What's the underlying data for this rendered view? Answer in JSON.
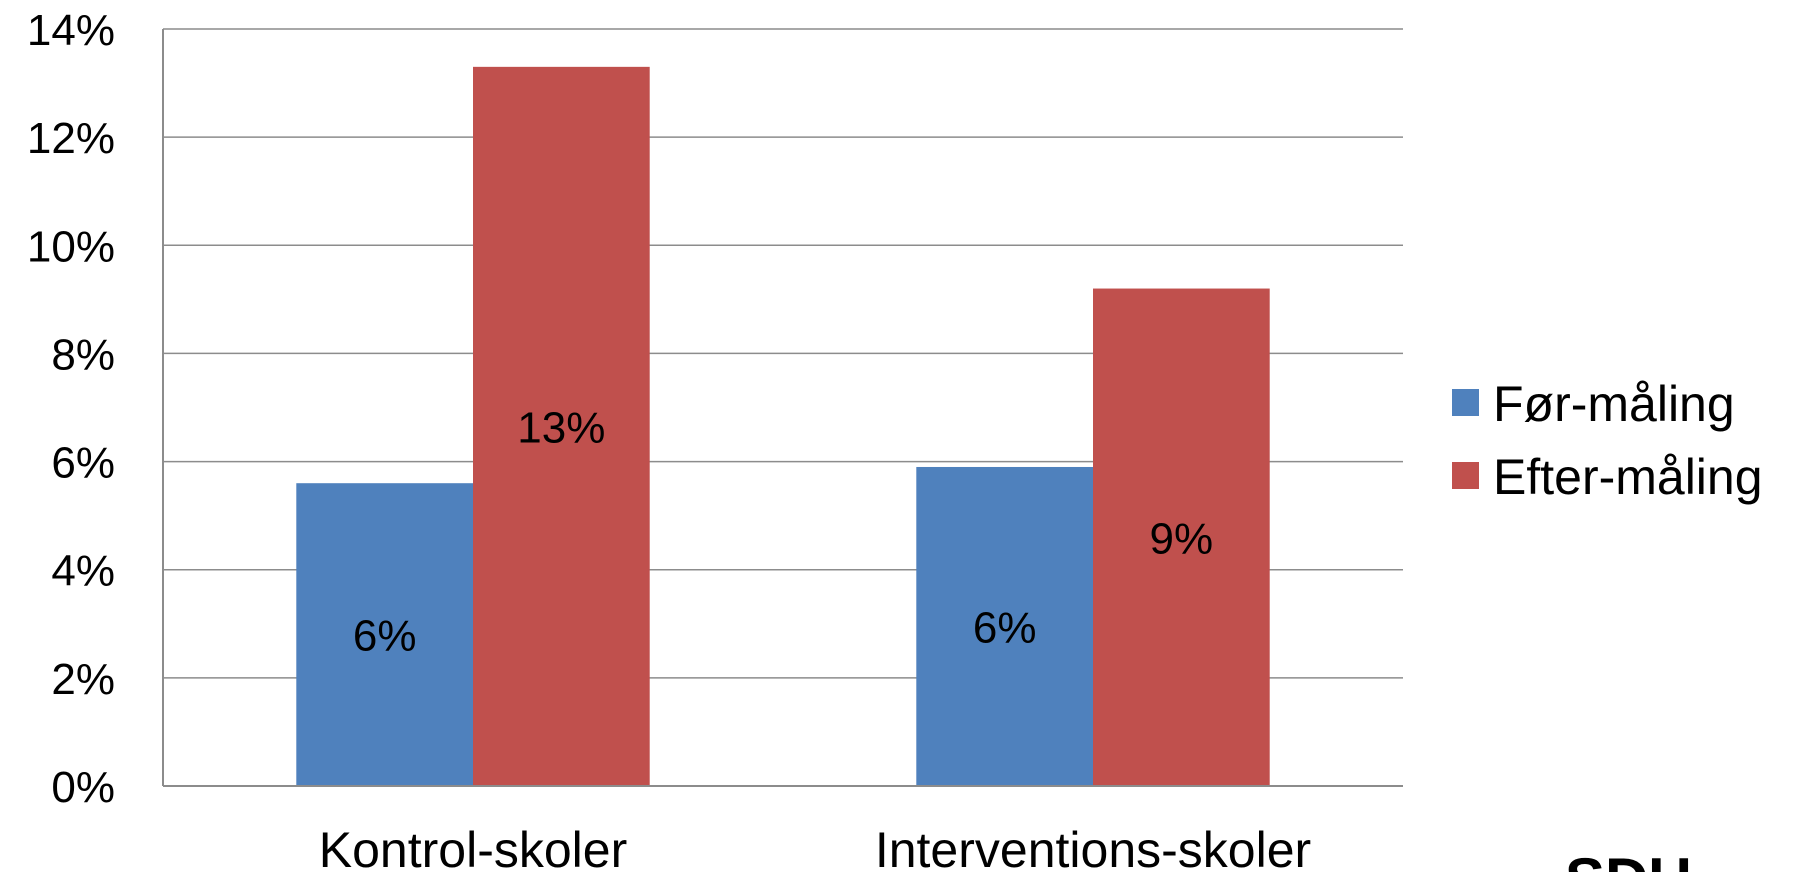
{
  "chart_data": {
    "type": "bar",
    "categories": [
      "Kontrol-skoler",
      "Interventions-skoler"
    ],
    "series": [
      {
        "name": "Før-måling",
        "values": [
          5.6,
          5.9
        ],
        "labels": [
          "6%",
          "6%"
        ],
        "color": "#4F81BD"
      },
      {
        "name": "Efter-måling",
        "values": [
          13.3,
          9.2
        ],
        "labels": [
          "13%",
          "9%"
        ],
        "color": "#C0504D"
      }
    ],
    "ylim": [
      0,
      14
    ],
    "yticks": [
      "0%",
      "2%",
      "4%",
      "6%",
      "8%",
      "10%",
      "12%",
      "14%"
    ],
    "ystep": 2,
    "grid": true,
    "legend": "right",
    "title": "",
    "xlabel": "",
    "ylabel": ""
  },
  "logo_text": "SDU"
}
